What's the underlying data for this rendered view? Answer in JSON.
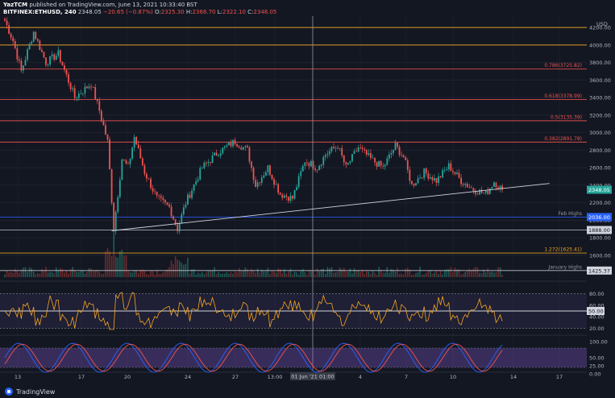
{
  "header": {
    "line1": {
      "author": "YazTCM",
      "text": "published on TradingView.com, June 13, 2021 10:33:40 BST"
    },
    "line2": {
      "symbol": "BITFINEX:ETHUSD, 240",
      "last": "2348.05",
      "change": "−20.65 (−0.87%)",
      "o_label": "O:",
      "o": "2325.30",
      "h_label": "H:",
      "h": "2368.70",
      "l_label": "L:",
      "l": "2322.10",
      "c_label": "C:",
      "c": "2348.05"
    }
  },
  "brand": {
    "name": "TradingView"
  },
  "colors": {
    "background": "#131722",
    "up": "#26a69a",
    "down": "#ef5350",
    "orange_level": "#f5a623",
    "red_level": "#ef5350",
    "blue_level": "#2962ff",
    "rsi": "#f5a623",
    "stoch_k": "#2962ff",
    "stoch_d": "#ef5350",
    "stoch_band": "#7e57c2"
  },
  "chart_data": {
    "type": "candlestick",
    "symbol": "BITFINEX:ETHUSD",
    "timeframe": "240",
    "y_axis": {
      "unit": "USD",
      "range": [
        1350,
        4330
      ],
      "ticks": [
        1600,
        1800,
        2000,
        2200,
        2400,
        2600,
        2800,
        3000,
        3200,
        3400,
        3600,
        3800,
        4000,
        4200
      ]
    },
    "x_axis": {
      "labels": [
        "13",
        "17",
        "20",
        "24",
        "27",
        "13:00",
        "01 Jun '21  01:00",
        "4",
        "7",
        "10",
        "14",
        "17"
      ]
    },
    "key_points": [
      {
        "i": 0,
        "price": 4280
      },
      {
        "i": 4,
        "price": 4050
      },
      {
        "i": 8,
        "price": 3700
      },
      {
        "i": 14,
        "price": 4150
      },
      {
        "i": 20,
        "price": 3800
      },
      {
        "i": 26,
        "price": 3900
      },
      {
        "i": 34,
        "price": 3400
      },
      {
        "i": 42,
        "price": 3560
      },
      {
        "i": 46,
        "price": 3250
      },
      {
        "i": 50,
        "price": 2900
      },
      {
        "i": 53,
        "price": 1900
      },
      {
        "i": 57,
        "price": 2700
      },
      {
        "i": 60,
        "price": 2600
      },
      {
        "i": 63,
        "price": 2950
      },
      {
        "i": 68,
        "price": 2550
      },
      {
        "i": 74,
        "price": 2250
      },
      {
        "i": 80,
        "price": 2150
      },
      {
        "i": 84,
        "price": 1900
      },
      {
        "i": 88,
        "price": 2200
      },
      {
        "i": 96,
        "price": 2600
      },
      {
        "i": 104,
        "price": 2780
      },
      {
        "i": 112,
        "price": 2900
      },
      {
        "i": 118,
        "price": 2800
      },
      {
        "i": 122,
        "price": 2400
      },
      {
        "i": 128,
        "price": 2600
      },
      {
        "i": 134,
        "price": 2300
      },
      {
        "i": 140,
        "price": 2250
      },
      {
        "i": 146,
        "price": 2680
      },
      {
        "i": 152,
        "price": 2600
      },
      {
        "i": 156,
        "price": 2750
      },
      {
        "i": 162,
        "price": 2850
      },
      {
        "i": 166,
        "price": 2600
      },
      {
        "i": 172,
        "price": 2830
      },
      {
        "i": 178,
        "price": 2700
      },
      {
        "i": 184,
        "price": 2600
      },
      {
        "i": 190,
        "price": 2850
      },
      {
        "i": 194,
        "price": 2720
      },
      {
        "i": 198,
        "price": 2400
      },
      {
        "i": 204,
        "price": 2550
      },
      {
        "i": 210,
        "price": 2450
      },
      {
        "i": 216,
        "price": 2620
      },
      {
        "i": 222,
        "price": 2450
      },
      {
        "i": 228,
        "price": 2350
      },
      {
        "i": 234,
        "price": 2300
      },
      {
        "i": 238,
        "price": 2440
      },
      {
        "i": 242,
        "price": 2348
      }
    ],
    "levels": [
      {
        "price": 4200,
        "label": "",
        "color": "orange"
      },
      {
        "price": 4000,
        "label": "",
        "color": "orange"
      },
      {
        "price": 3725.82,
        "label": "0.786(3725.82)",
        "color": "red"
      },
      {
        "price": 3378.99,
        "label": "0.618(3378.99)",
        "color": "red"
      },
      {
        "price": 3135.39,
        "label": "0.5(3135.39)",
        "color": "red"
      },
      {
        "price": 2891.78,
        "label": "0.382(2891.78)",
        "color": "red"
      },
      {
        "price": 2036,
        "label": "Feb Highs",
        "color": "blue"
      },
      {
        "price": 1888,
        "label": "",
        "color": "white"
      },
      {
        "price": 1625.41,
        "label": "1.272(1625.41)",
        "color": "orange"
      },
      {
        "price": 1425.37,
        "label": "January Highs",
        "color": "white"
      }
    ],
    "price_tags": [
      {
        "price": 2348.05,
        "label": "2348.05",
        "kind": "current"
      },
      {
        "price": 2036,
        "label": "2036.00",
        "kind": "blue"
      },
      {
        "price": 1888,
        "label": "1888.00",
        "kind": "white"
      },
      {
        "price": 1425.37,
        "label": "1425.37",
        "kind": "white"
      }
    ],
    "trendline": {
      "from": {
        "i": 52,
        "price": 1880
      },
      "to": {
        "i": 265,
        "price": 2420
      }
    },
    "vertical_marker": {
      "label": "01 Jun '21  01:00"
    },
    "rsi": {
      "levels": [
        80,
        50,
        20
      ],
      "ticks": [
        80,
        60,
        50,
        40,
        20
      ],
      "highlight_label": "50.00"
    },
    "stoch_rsi": {
      "ticks": [
        100,
        50,
        25,
        0
      ]
    }
  }
}
